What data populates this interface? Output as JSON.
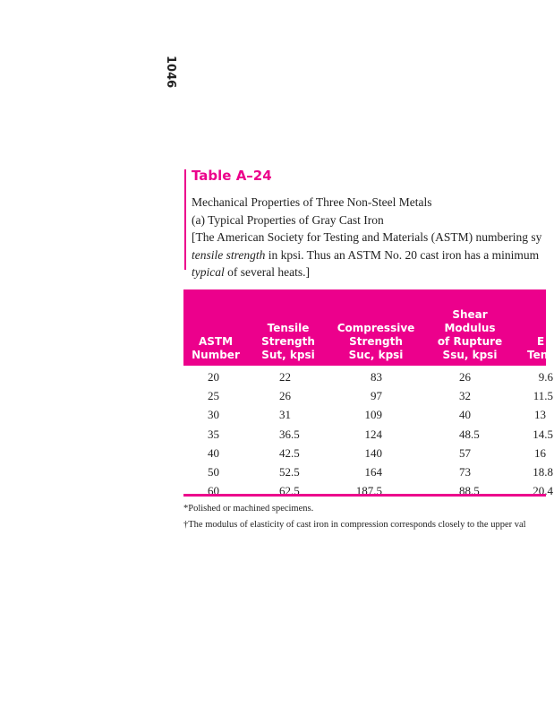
{
  "page_number": "1046",
  "table": {
    "title": "Table A–24",
    "caption": [
      "Mechanical Properties of Three Non-Steel Metals",
      "(a) Typical Properties of Gray Cast Iron"
    ],
    "note_line1": "[The American Society for Testing and Materials (ASTM) numbering sy",
    "note_line2_italic": "tensile strength",
    "note_line2_rest": " in kpsi. Thus an ASTM No. 20 cast iron has a minimum",
    "note_line3_italic": "typical",
    "note_line3_rest": " of several heats.]",
    "headers": [
      [
        "ASTM",
        "Number"
      ],
      [
        "Tensile",
        "Strength",
        "Sut, kpsi"
      ],
      [
        "Compressive",
        "Strength",
        "Suc, kpsi"
      ],
      [
        "Shear",
        "Modulus",
        "of Rupture",
        "Ssu, kpsi"
      ],
      [
        "E",
        "Ten"
      ]
    ],
    "rows": [
      [
        "20",
        "22",
        "83",
        "26",
        "9.6"
      ],
      [
        "25",
        "26",
        "97",
        "32",
        "11.5"
      ],
      [
        "30",
        "31",
        "109",
        "40",
        "13"
      ],
      [
        "35",
        "36.5",
        "124",
        "48.5",
        "14.5"
      ],
      [
        "40",
        "42.5",
        "140",
        "57",
        "16"
      ],
      [
        "50",
        "52.5",
        "164",
        "73",
        "18.8"
      ],
      [
        "60",
        "62.5",
        "187.5",
        "88.5",
        "20.4"
      ]
    ],
    "footnotes": [
      "*Polished or machined specimens.",
      "†The modulus of elasticity of cast iron in compression corresponds closely to the upper val"
    ],
    "accent_color": "#ec008c"
  }
}
